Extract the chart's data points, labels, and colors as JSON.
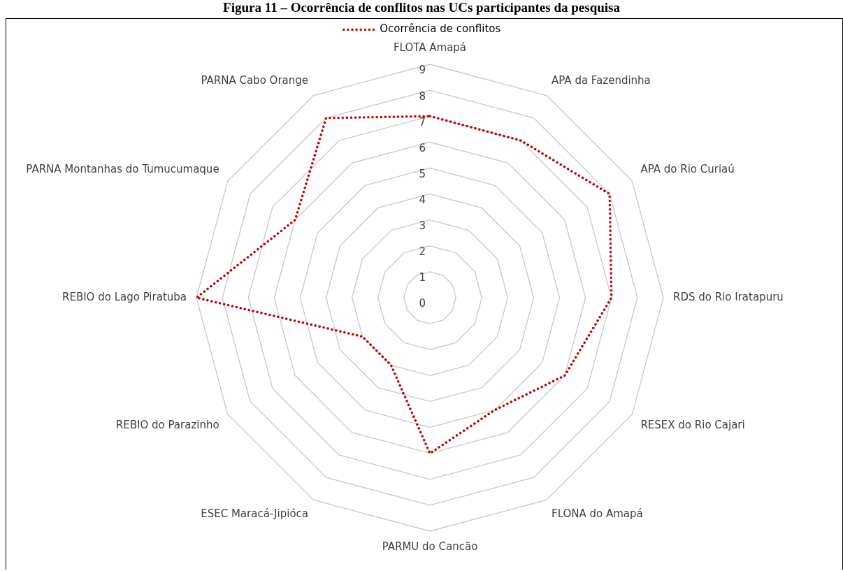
{
  "chart_data": {
    "type": "radar",
    "title": "Figura 11 – Ocorrência de conflitos nas UCs participantes da pesquisa",
    "categories": [
      "FLOTA Amapá",
      "APA da Fazendinha",
      "APA do Rio Curiaú",
      "RDS do Rio Iratapuru",
      "RESEX do Rio Cajari",
      "FLONA do Amapá",
      "PARMU do Cancão",
      "ESEC Maracá-Jipióca",
      "REBIO do Parazinho",
      "REBIO do Lago Piratuba",
      "PARNA Montanhas do Tumucumaque",
      "PARNA Cabo Orange"
    ],
    "series": [
      {
        "name": "Ocorrência de conflitos",
        "color": "#c00000",
        "values": [
          7,
          7,
          8,
          7,
          6,
          5,
          6,
          3,
          3,
          9,
          6,
          8
        ]
      }
    ],
    "ylim": [
      0,
      9
    ],
    "yticks": [
      0,
      1,
      2,
      3,
      4,
      5,
      6,
      7,
      8,
      9
    ],
    "grid": true,
    "legend": "top",
    "marker": "none",
    "line_style": "dotted"
  }
}
